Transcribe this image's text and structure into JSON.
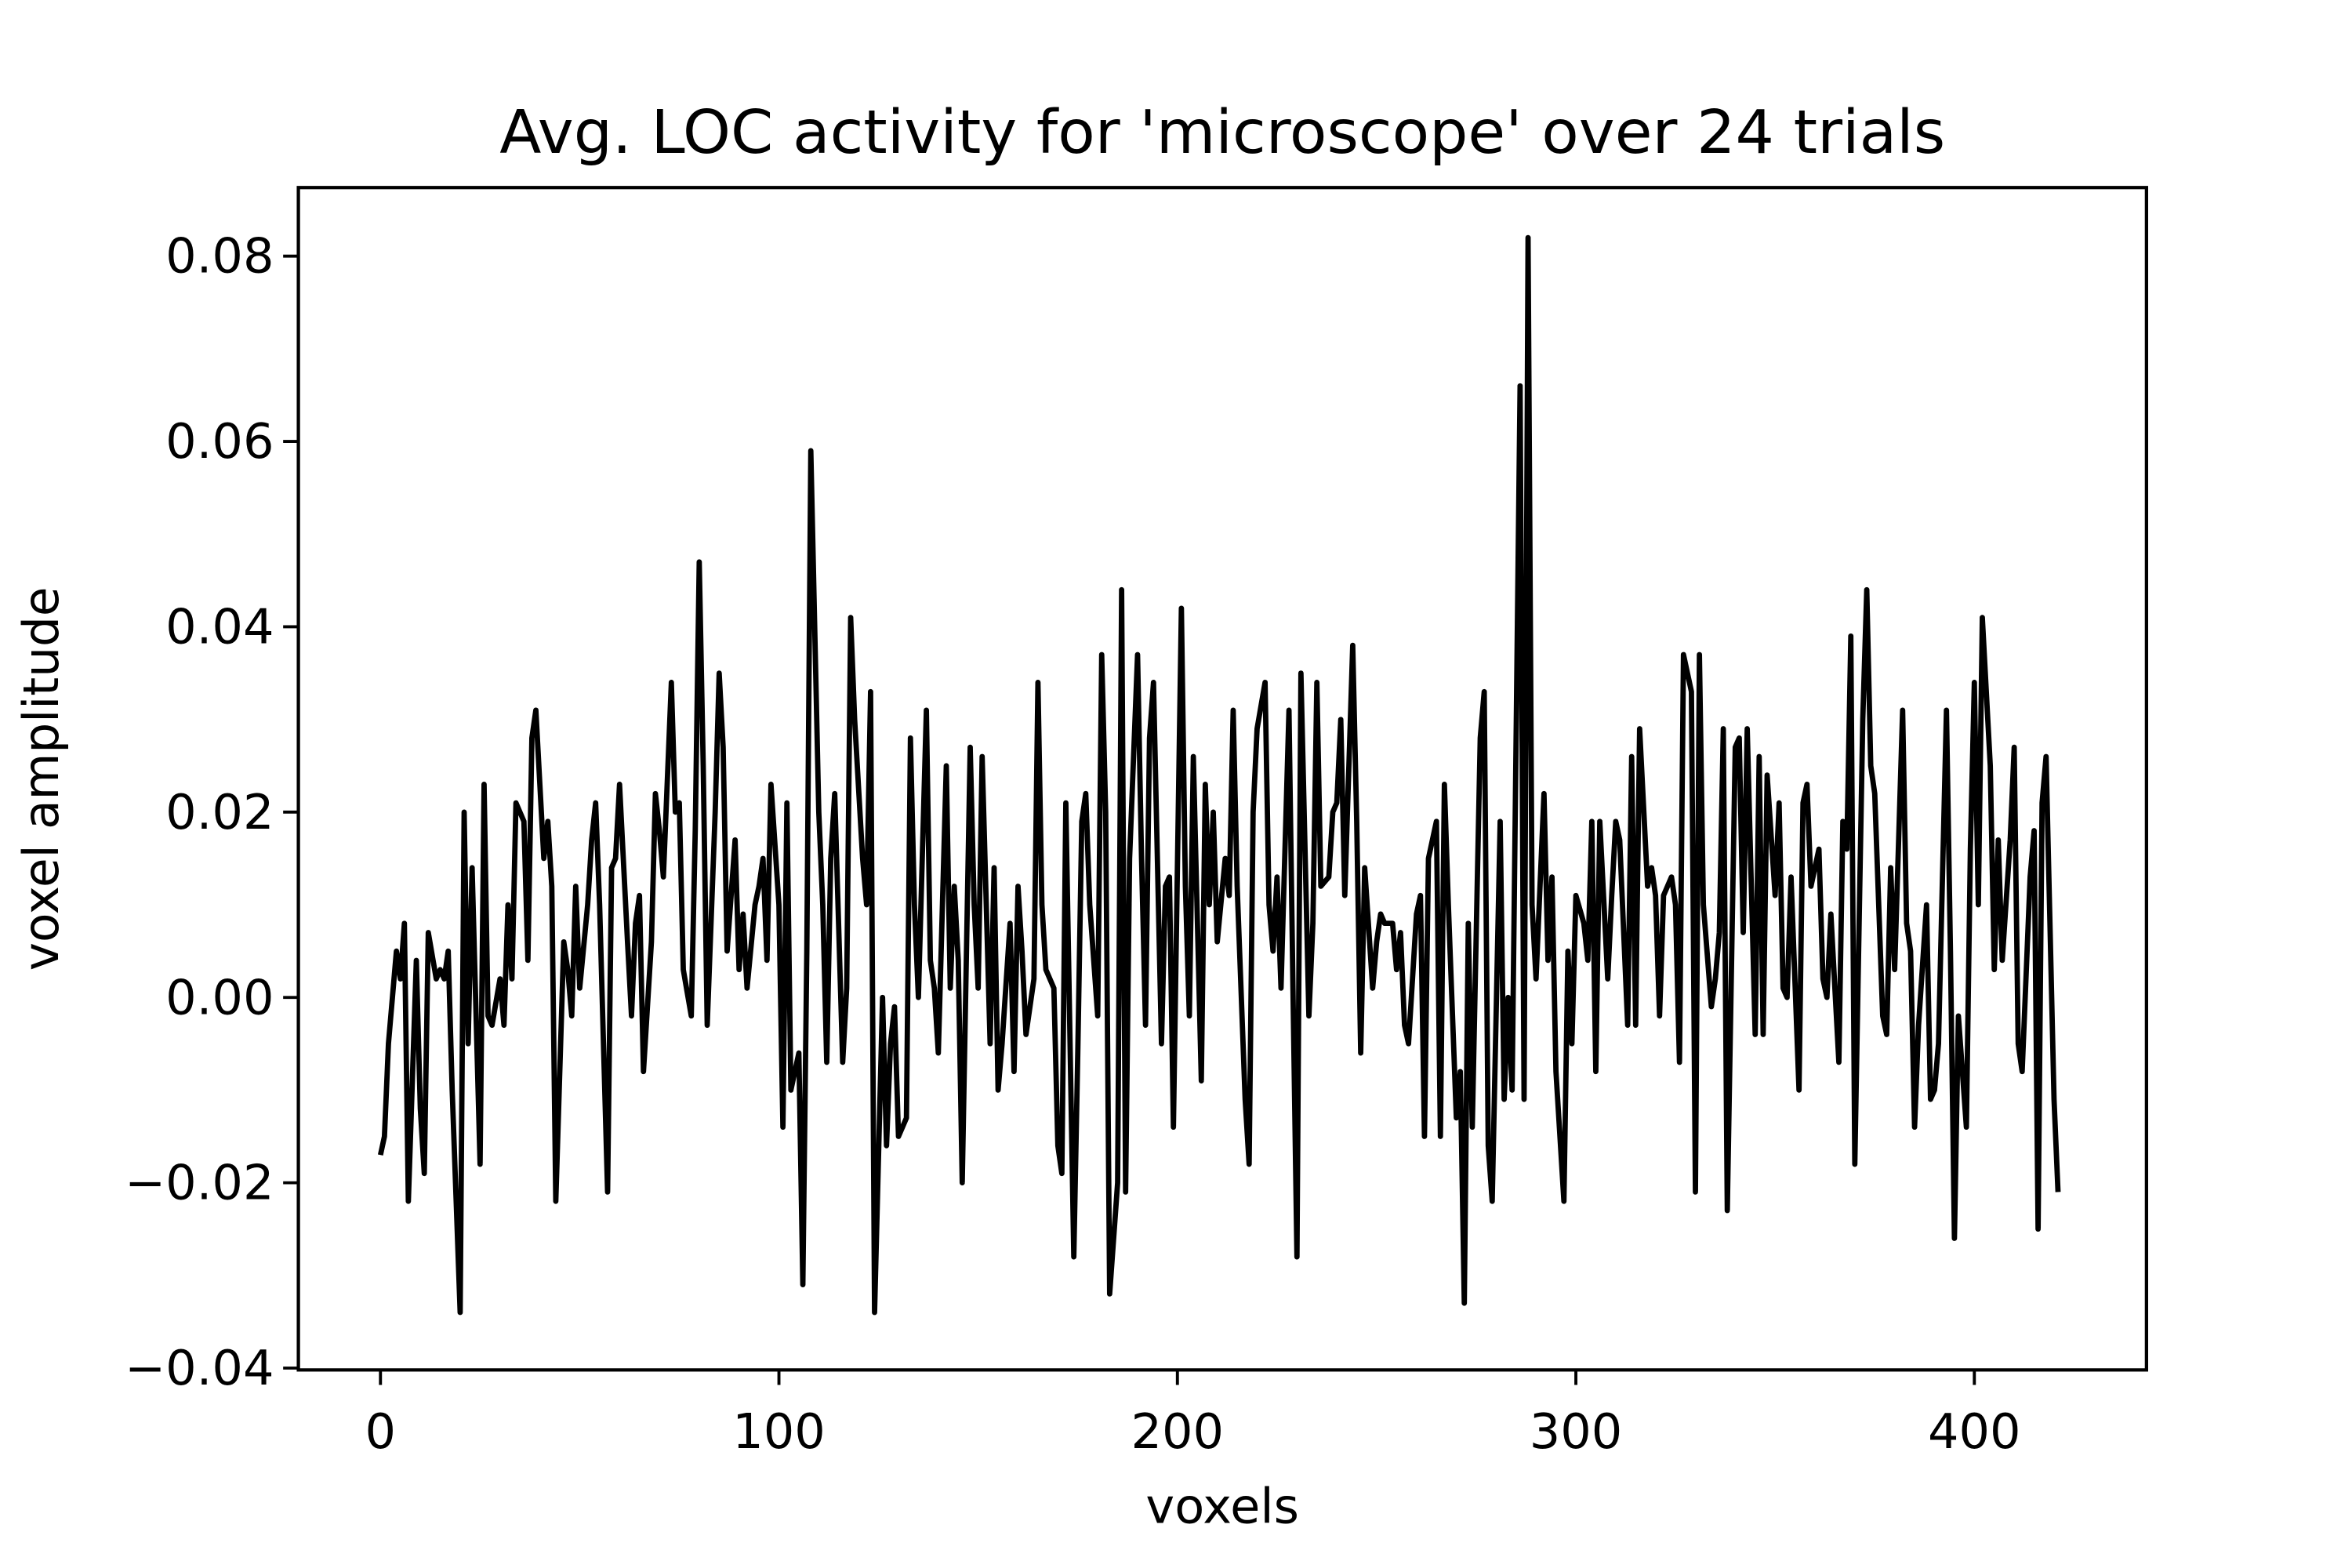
{
  "chart_data": {
    "type": "line",
    "title": "Avg. LOC activity for 'microscope' over 24 trials",
    "xlabel": "voxels",
    "ylabel": "voxel amplitude",
    "xlim": [
      -20.6,
      443.2
    ],
    "ylim": [
      -0.0402,
      0.0874
    ],
    "xticks": [
      0,
      100,
      200,
      300,
      400
    ],
    "yticks": [
      {
        "value": -0.04,
        "label": "−0.04"
      },
      {
        "value": -0.02,
        "label": "−0.02"
      },
      {
        "value": 0,
        "label": "0.00"
      },
      0.02,
      0.04,
      0.06,
      0.08
    ],
    "grid": false,
    "series": [
      {
        "color": "#000000",
        "x": [
          0,
          1,
          2,
          4,
          5,
          6,
          7,
          9,
          10,
          11,
          12,
          14,
          15,
          16,
          17,
          18,
          20,
          21,
          22,
          23,
          25,
          26,
          27,
          28,
          30,
          31,
          32,
          33,
          34,
          36,
          37,
          38,
          39,
          41,
          42,
          43,
          44,
          46,
          47,
          48,
          49,
          50,
          52,
          53,
          54,
          55,
          57,
          58,
          59,
          60,
          62,
          63,
          64,
          65,
          66,
          68,
          69,
          70,
          71,
          73,
          74,
          75,
          76,
          78,
          79,
          80,
          81,
          82,
          84,
          85,
          86,
          87,
          89,
          90,
          91,
          92,
          94,
          95,
          96,
          97,
          98,
          100,
          101,
          102,
          103,
          105,
          106,
          107,
          108,
          110,
          111,
          112,
          113,
          114,
          116,
          117,
          118,
          119,
          121,
          122,
          123,
          124,
          126,
          127,
          128,
          129,
          130,
          132,
          133,
          134,
          135,
          137,
          138,
          139,
          140,
          142,
          143,
          144,
          145,
          146,
          148,
          149,
          150,
          151,
          153,
          154,
          155,
          156,
          158,
          159,
          160,
          161,
          162,
          164,
          165,
          166,
          167,
          169,
          170,
          171,
          172,
          174,
          175,
          176,
          177,
          178,
          180,
          181,
          182,
          183,
          185,
          186,
          187,
          188,
          190,
          191,
          192,
          193,
          194,
          196,
          197,
          198,
          199,
          201,
          202,
          203,
          204,
          206,
          207,
          208,
          209,
          210,
          212,
          213,
          214,
          215,
          217,
          218,
          219,
          220,
          222,
          223,
          224,
          225,
          226,
          228,
          229,
          230,
          231,
          233,
          234,
          235,
          236,
          238,
          239,
          240,
          241,
          242,
          244,
          245,
          246,
          247,
          249,
          250,
          251,
          252,
          254,
          255,
          256,
          257,
          258,
          260,
          261,
          262,
          263,
          265,
          266,
          267,
          268,
          270,
          271,
          272,
          273,
          274,
          276,
          277,
          278,
          279,
          281,
          282,
          283,
          284,
          286,
          287,
          288,
          289,
          290,
          292,
          293,
          294,
          295,
          297,
          298,
          299,
          300,
          302,
          303,
          304,
          305,
          306,
          308,
          309,
          310,
          311,
          313,
          314,
          315,
          316,
          318,
          319,
          320,
          321,
          322,
          324,
          325,
          326,
          327,
          329,
          330,
          331,
          332,
          334,
          335,
          336,
          337,
          338,
          340,
          341,
          342,
          343,
          345,
          346,
          347,
          348,
          350,
          351,
          352,
          353,
          354,
          356,
          357,
          358,
          359,
          361,
          362,
          363,
          364,
          366,
          367,
          368,
          369,
          370,
          372,
          373,
          374,
          375,
          377,
          378,
          379,
          380,
          382,
          383,
          384,
          385,
          386,
          388,
          389,
          390,
          391,
          393,
          394,
          395,
          396,
          398,
          399,
          400,
          401,
          402,
          404,
          405,
          406,
          407,
          409,
          410,
          411,
          412,
          414,
          415,
          416,
          417,
          418,
          420,
          421
        ],
        "values": [
          -0.017,
          -0.015,
          -0.005,
          0.005,
          0.002,
          0.008,
          -0.022,
          0.004,
          -0.012,
          -0.019,
          0.007,
          0.002,
          0.003,
          0.002,
          0.005,
          -0.01,
          -0.034,
          0.02,
          -0.005,
          0.014,
          -0.018,
          0.023,
          -0.002,
          -0.003,
          0.002,
          -0.003,
          0.01,
          0.002,
          0.021,
          0.019,
          0.004,
          0.028,
          0.031,
          0.015,
          0.019,
          0.012,
          -0.022,
          0.006,
          0.003,
          -0.002,
          0.012,
          0.001,
          0.01,
          0.017,
          0.021,
          0.01,
          -0.021,
          0.014,
          0.015,
          0.023,
          0.006,
          -0.002,
          0.008,
          0.011,
          -0.008,
          0.006,
          0.022,
          0.018,
          0.013,
          0.034,
          0.02,
          0.021,
          0.003,
          -0.002,
          0.018,
          0.047,
          0.025,
          -0.003,
          0.02,
          0.035,
          0.027,
          0.005,
          0.017,
          0.003,
          0.009,
          0.001,
          0.01,
          0.012,
          0.015,
          0.004,
          0.023,
          0.01,
          -0.014,
          0.021,
          -0.01,
          -0.006,
          -0.031,
          0.005,
          0.059,
          0.02,
          0.01,
          -0.007,
          0.015,
          0.022,
          -0.007,
          0.001,
          0.041,
          0.03,
          0.015,
          0.01,
          0.033,
          -0.034,
          0.0,
          -0.016,
          -0.005,
          -0.001,
          -0.015,
          -0.013,
          0.028,
          0.01,
          0.0,
          0.031,
          0.004,
          0.001,
          -0.006,
          0.025,
          0.001,
          0.012,
          0.004,
          -0.02,
          0.027,
          0.01,
          0.001,
          0.026,
          -0.005,
          0.014,
          -0.01,
          -0.005,
          0.008,
          -0.008,
          0.012,
          0.005,
          -0.004,
          0.002,
          0.034,
          0.01,
          0.003,
          0.001,
          -0.016,
          -0.019,
          0.021,
          -0.028,
          -0.006,
          0.019,
          0.022,
          0.01,
          -0.002,
          0.037,
          0.02,
          -0.032,
          -0.02,
          0.044,
          -0.021,
          0.015,
          0.037,
          0.015,
          -0.003,
          0.028,
          0.034,
          -0.005,
          0.012,
          0.013,
          -0.014,
          0.042,
          0.012,
          -0.002,
          0.026,
          -0.009,
          0.023,
          0.01,
          0.02,
          0.006,
          0.015,
          0.011,
          0.031,
          0.012,
          -0.011,
          -0.018,
          0.02,
          0.029,
          0.034,
          0.01,
          0.005,
          0.013,
          0.001,
          0.031,
          0.001,
          -0.028,
          0.035,
          -0.002,
          0.008,
          0.034,
          0.012,
          0.013,
          0.02,
          0.021,
          0.03,
          0.011,
          0.038,
          0.019,
          -0.006,
          0.014,
          0.001,
          0.006,
          0.009,
          0.008,
          0.008,
          0.003,
          0.007,
          -0.003,
          -0.005,
          0.009,
          0.011,
          -0.015,
          0.015,
          0.019,
          -0.015,
          0.023,
          0.01,
          -0.013,
          -0.008,
          -0.033,
          0.008,
          -0.014,
          0.028,
          0.033,
          -0.016,
          -0.022,
          0.019,
          -0.011,
          0.0,
          -0.01,
          0.066,
          -0.011,
          0.082,
          0.01,
          0.002,
          0.022,
          0.004,
          0.013,
          -0.008,
          -0.022,
          0.005,
          -0.005,
          0.011,
          0.008,
          0.004,
          0.019,
          -0.008,
          0.019,
          0.002,
          0.011,
          0.019,
          0.017,
          -0.003,
          0.026,
          -0.003,
          0.029,
          0.012,
          0.014,
          0.011,
          -0.002,
          0.011,
          0.013,
          0.01,
          -0.007,
          0.037,
          0.033,
          -0.021,
          0.037,
          0.01,
          -0.001,
          0.002,
          0.007,
          0.029,
          -0.023,
          0.027,
          0.028,
          0.007,
          0.029,
          -0.004,
          0.026,
          -0.004,
          0.024,
          0.011,
          0.021,
          0.001,
          0.0,
          0.013,
          -0.01,
          0.021,
          0.023,
          0.012,
          0.016,
          0.002,
          0.0,
          0.009,
          -0.007,
          0.019,
          0.016,
          0.039,
          -0.018,
          0.03,
          0.044,
          0.025,
          0.022,
          -0.002,
          -0.004,
          0.014,
          0.003,
          0.031,
          0.008,
          0.005,
          -0.014,
          -0.003,
          0.01,
          -0.011,
          -0.01,
          -0.005,
          0.031,
          0.005,
          -0.026,
          -0.002,
          -0.014,
          0.016,
          0.034,
          0.01,
          0.041,
          0.025,
          0.003,
          0.017,
          0.004,
          0.017,
          0.027,
          -0.005,
          -0.008,
          0.013,
          0.018,
          -0.025,
          0.021,
          0.026,
          -0.011,
          -0.021
        ]
      }
    ]
  }
}
